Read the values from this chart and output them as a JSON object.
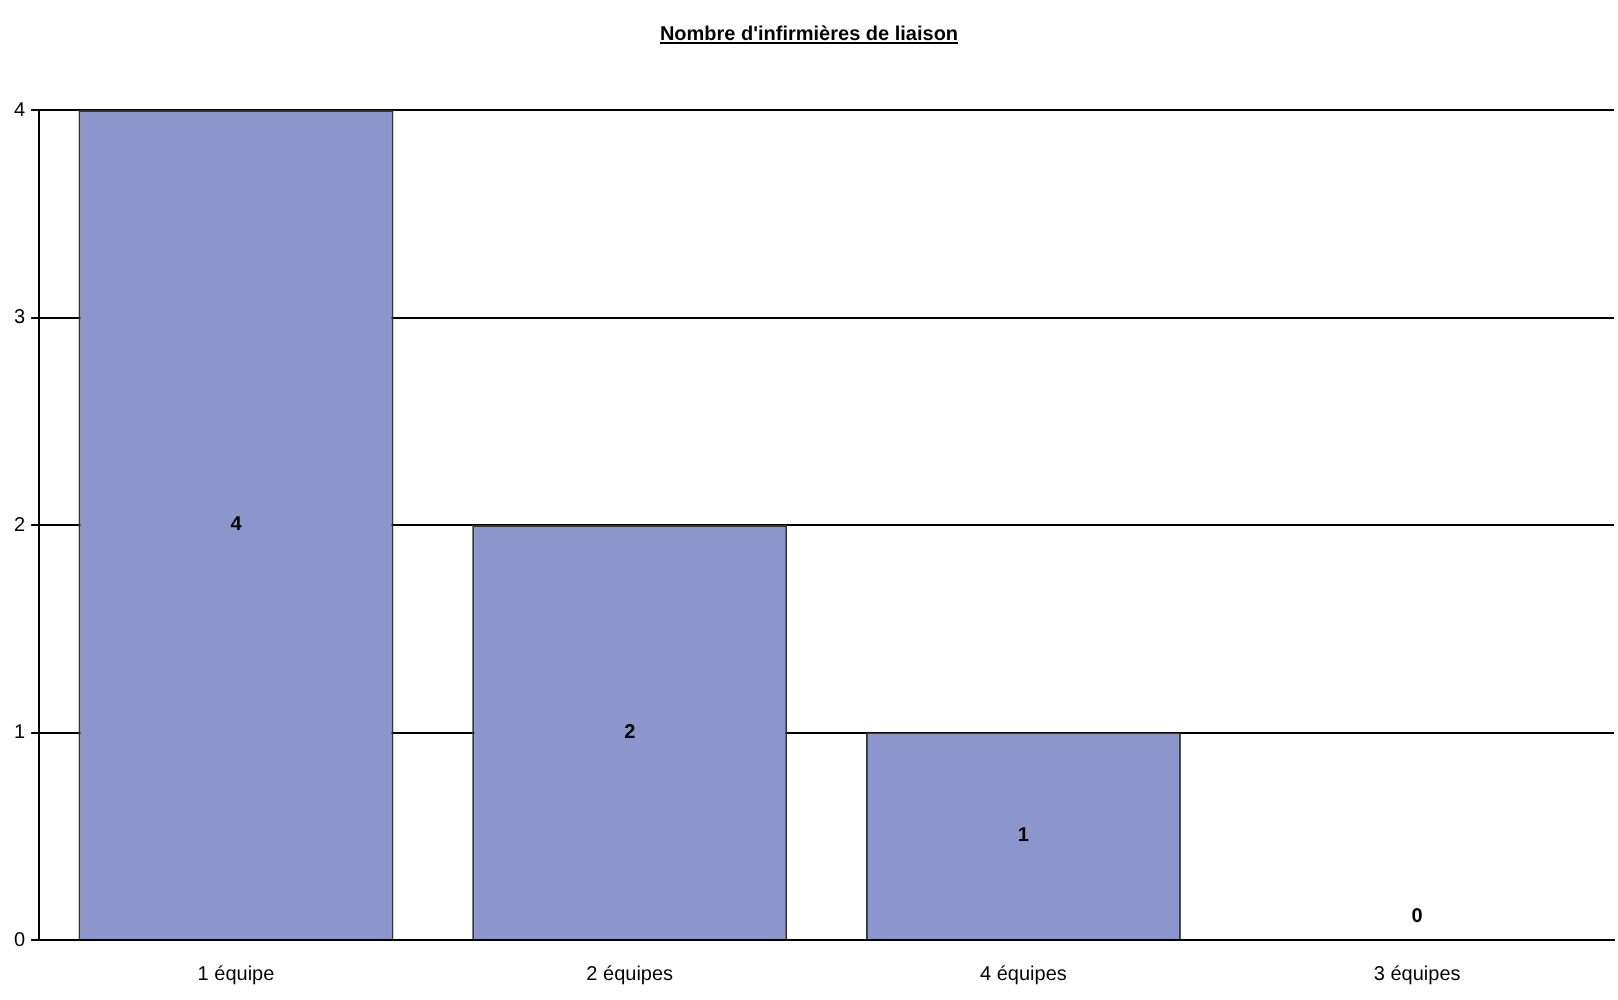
{
  "chart_data": {
    "type": "bar",
    "title": "Nombre d'infirmières de liaison",
    "categories": [
      "1 équipe",
      "2 équipes",
      "4 équipes",
      "3 équipes"
    ],
    "values": [
      4,
      2,
      1,
      0
    ],
    "color": "#8c96cc",
    "ylim": [
      0,
      4
    ],
    "yticks": [
      0,
      1,
      2,
      3,
      4
    ],
    "grid": "y",
    "data_labels": true,
    "legend": false
  }
}
